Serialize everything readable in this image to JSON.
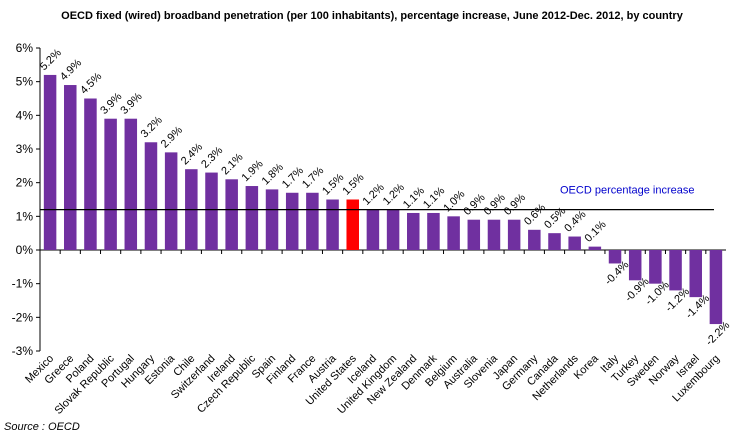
{
  "chart_data": {
    "type": "bar",
    "title": "OECD fixed (wired) broadband penetration (per 100 inhabitants),  percentage increase, June 2012-Dec. 2012, by country",
    "xlabel": "",
    "ylabel": "",
    "ylim": [
      -3,
      6
    ],
    "yticks": [
      "-3%",
      "-2%",
      "-1%",
      "0%",
      "1%",
      "2%",
      "3%",
      "4%",
      "5%",
      "6%"
    ],
    "categories": [
      "Mexico",
      "Greece",
      "Poland",
      "Slovak Republic",
      "Portugal",
      "Hungary",
      "Estonia",
      "Chile",
      "Switzerland",
      "Ireland",
      "Czech Republic",
      "Spain",
      "Finland",
      "France",
      "Austria",
      "United States",
      "Iceland",
      "United Kingdom",
      "New Zealand",
      "Denmark",
      "Belgium",
      "Australia",
      "Slovenia",
      "Japan",
      "Germany",
      "Canada",
      "Netherlands",
      "Korea",
      "Italy",
      "Turkey",
      "Sweden",
      "Norway",
      "Israel",
      "Luxembourg"
    ],
    "values": [
      5.2,
      4.9,
      4.5,
      3.9,
      3.9,
      3.2,
      2.9,
      2.4,
      2.3,
      2.1,
      1.9,
      1.8,
      1.7,
      1.7,
      1.5,
      1.5,
      1.2,
      1.2,
      1.1,
      1.1,
      1.0,
      0.9,
      0.9,
      0.9,
      0.6,
      0.5,
      0.4,
      0.1,
      -0.4,
      -0.9,
      -1.0,
      -1.2,
      -1.4,
      -2.2
    ],
    "value_labels": [
      "5.2%",
      "4.9%",
      "4.5%",
      "3.9%",
      "3.9%",
      "3.2%",
      "2.9%",
      "2.4%",
      "2.3%",
      "2.1%",
      "1.9%",
      "1.8%",
      "1.7%",
      "1.7%",
      "1.5%",
      "1.5%",
      "1.2%",
      "1.2%",
      "1.1%",
      "1.1%",
      "1.0%",
      "0.9%",
      "0.9%",
      "0.9%",
      "0.6%",
      "0.5%",
      "0.4%",
      "0.1%",
      "-0.4%",
      "-0.9%",
      "-1.0%",
      "-1.2%",
      "-1.4%",
      "-2.2%"
    ],
    "highlight_category": "United States",
    "bar_color": "#7030A0",
    "highlight_color": "#FF0000",
    "reference_line": {
      "value": 1.2,
      "label": "OECD percentage increase",
      "color": "#000000",
      "label_color": "#0000CC"
    },
    "grid": false,
    "source": "Source : OECD"
  }
}
